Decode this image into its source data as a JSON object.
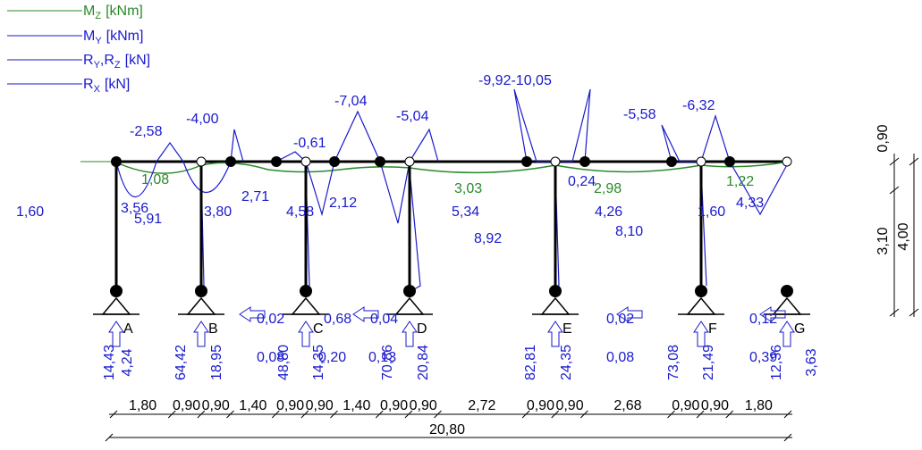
{
  "legend": [
    {
      "parts": [
        "M",
        "Z",
        "[kNm]"
      ]
    },
    {
      "parts": [
        "M",
        "Y",
        "[kNm]"
      ]
    },
    {
      "parts": [
        "R",
        "Y",
        ",R",
        "Z",
        "[kN]"
      ]
    },
    {
      "parts": [
        "R",
        "X",
        "[kN]"
      ]
    }
  ],
  "supports": [
    "A",
    "B",
    "C",
    "D",
    "E",
    "F",
    "G"
  ],
  "moment_labels": [
    "-2,58",
    "-4,00",
    "-0,61",
    "-7,04",
    "-5,04",
    "-9,92-10,05",
    "-5,58",
    "-6,32"
  ],
  "force_labels": [
    "1,60",
    "3,56",
    "5,91",
    "3,80",
    "2,71",
    "4,58",
    "2,12",
    "5,34",
    "8,92",
    "0,24",
    "4,26",
    "8,10",
    "1,60",
    "4,33"
  ],
  "moment_z_labels": [
    "1,08",
    "3,03",
    "2,98",
    "1,22"
  ],
  "horizontal_reactions": [
    "0,02",
    "0,08",
    "0,68",
    "0,04",
    "0,20",
    "0,13",
    "0,02",
    "0,08",
    "0,12",
    "0,39"
  ],
  "vertical_reactions": [
    "14,43",
    "4,24",
    "64,42",
    "18,95",
    "48,80",
    "14,35",
    "70,86",
    "20,84",
    "82,81",
    "24,35",
    "73,08",
    "21,49",
    "12,36",
    "3,63"
  ],
  "dimensions": {
    "segments": [
      "1,80",
      "0,90",
      "0,90",
      "1,40",
      "0,90",
      "0,90",
      "1,40",
      "0,90",
      "0,90",
      "2,72",
      "0,90",
      "0,90",
      "2,68",
      "0,90",
      "0,90",
      "1,80"
    ],
    "total": "20,80",
    "side": [
      "0,90",
      "4,00",
      "3,10"
    ]
  }
}
